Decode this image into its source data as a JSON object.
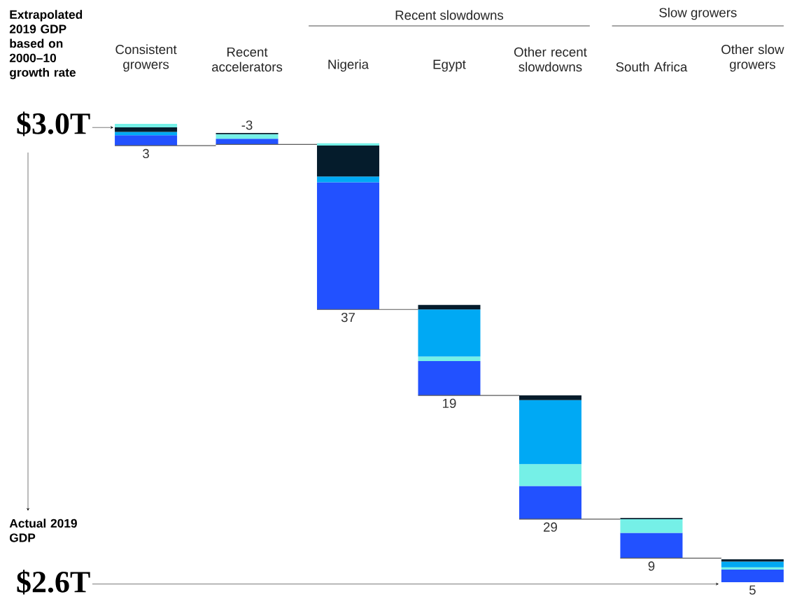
{
  "chart_data": {
    "type": "bar",
    "categories": [
      "Consistent growers",
      "Recent accelerators",
      "Nigeria",
      "Egypt",
      "Other recent slowdowns",
      "South Africa",
      "Other slow growers"
    ],
    "series": [
      {
        "color": "#2251ff",
        "base": [
          2.981,
          2.982,
          2.838,
          2.763,
          2.655,
          2.621,
          2.6
        ],
        "values": [
          0.009,
          0.005,
          0.111,
          0.03,
          0.029,
          0.022,
          0.011
        ]
      },
      {
        "color": "#75f0e7",
        "base": [
          2.997,
          2.987,
          2.981,
          2.793,
          2.684,
          2.643,
          2.611
        ],
        "values": [
          0.003,
          0.004,
          0.002,
          0.004,
          0.019,
          0.012,
          0.002
        ]
      },
      {
        "color": "#00a9f4",
        "base": [
          2.99,
          null,
          2.949,
          2.797,
          2.703,
          null,
          2.613
        ],
        "values": [
          0.003,
          null,
          0.005,
          0.041,
          0.056,
          null,
          0.005
        ]
      },
      {
        "color": "#051c2c",
        "base": [
          2.993,
          2.991,
          2.954,
          2.838,
          2.759,
          2.655,
          2.618
        ],
        "values": [
          0.004,
          0.001,
          0.027,
          0.004,
          0.004,
          0.001,
          0.002
        ]
      }
    ],
    "value_labels": [
      "3",
      "-3",
      "37",
      "19",
      "29",
      "9",
      "5"
    ],
    "ylim": [
      2.6,
      3.0
    ],
    "yticks": [
      {
        "value": 3.0,
        "label": "$3.0T"
      },
      {
        "value": 2.6,
        "label": "$2.6T"
      }
    ],
    "annotations": [
      "Extrapolated 2019 GDP based on 2000–10 growth rate",
      "Actual 2019 GDP",
      "Recent slowdowns",
      "Slow growers"
    ]
  }
}
